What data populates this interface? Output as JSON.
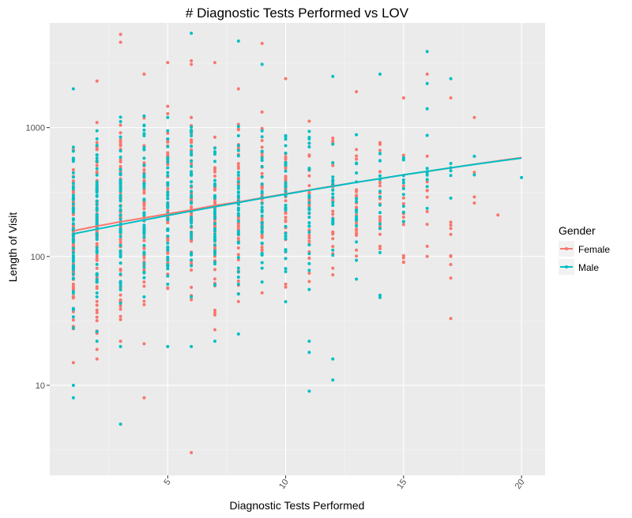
{
  "chart_data": {
    "type": "scatter",
    "title": "# Diagnostic Tests Performed vs LOV",
    "xlabel": "Diagnostic Tests Performed",
    "ylabel": "Length of Visit",
    "xlim": [
      0,
      21
    ],
    "ylim": [
      2,
      6500
    ],
    "y_scale": "log10",
    "x_ticks": [
      5,
      10,
      15,
      20
    ],
    "x_tick_labels": [
      "5",
      "10",
      "15",
      "20"
    ],
    "y_ticks": [
      10,
      100,
      1000
    ],
    "y_tick_labels": [
      "10",
      "100",
      "1000"
    ],
    "grid": true,
    "legend": {
      "title": "Gender",
      "position": "right",
      "entries": [
        "Female",
        "Male"
      ]
    },
    "series": [
      {
        "name": "Female",
        "color": "#f8766d",
        "trend": [
          [
            1,
            158
          ],
          [
            2,
            172
          ],
          [
            3,
            186
          ],
          [
            4,
            199
          ],
          [
            5,
            214
          ],
          [
            6,
            230
          ],
          [
            7,
            249
          ],
          [
            8,
            265
          ],
          [
            9,
            285
          ],
          [
            10,
            306
          ],
          [
            11,
            328
          ],
          [
            12,
            352
          ],
          [
            13,
            377
          ],
          [
            14,
            402
          ],
          [
            15,
            430
          ],
          [
            16,
            458
          ],
          [
            17,
            487
          ],
          [
            18,
            520
          ],
          [
            19,
            552
          ],
          [
            20,
            585
          ]
        ],
        "bands": [
          {
            "x": 1,
            "lo": 14,
            "hi": 1050,
            "n": 70
          },
          {
            "x": 2,
            "lo": 15,
            "hi": 1500,
            "n": 70
          },
          {
            "x": 3,
            "lo": 25,
            "hi": 1700,
            "n": 65
          },
          {
            "x": 4,
            "lo": 30,
            "hi": 1500,
            "n": 55
          },
          {
            "x": 5,
            "lo": 30,
            "hi": 1600,
            "n": 50
          },
          {
            "x": 6,
            "lo": 30,
            "hi": 1700,
            "n": 50
          },
          {
            "x": 7,
            "lo": 30,
            "hi": 1800,
            "n": 45
          },
          {
            "x": 8,
            "lo": 40,
            "hi": 1600,
            "n": 45
          },
          {
            "x": 9,
            "lo": 40,
            "hi": 1500,
            "n": 40
          },
          {
            "x": 10,
            "lo": 40,
            "hi": 1600,
            "n": 35
          },
          {
            "x": 11,
            "lo": 45,
            "hi": 1300,
            "n": 30
          },
          {
            "x": 12,
            "lo": 60,
            "hi": 1200,
            "n": 25
          },
          {
            "x": 13,
            "lo": 60,
            "hi": 1000,
            "n": 20
          },
          {
            "x": 14,
            "lo": 80,
            "hi": 1000,
            "n": 15
          },
          {
            "x": 15,
            "lo": 80,
            "hi": 900,
            "n": 12
          },
          {
            "x": 16,
            "lo": 150,
            "hi": 700,
            "n": 8
          },
          {
            "x": 17,
            "lo": 70,
            "hi": 650,
            "n": 6
          }
        ],
        "points": [
          [
            3,
            5300
          ],
          [
            3,
            4600
          ],
          [
            4,
            2600
          ],
          [
            5,
            3200
          ],
          [
            6,
            3300
          ],
          [
            6,
            3100
          ],
          [
            7,
            3200
          ],
          [
            8,
            2000
          ],
          [
            9,
            4500
          ],
          [
            10,
            2400
          ],
          [
            2,
            2300
          ],
          [
            13,
            1900
          ],
          [
            15,
            1700
          ],
          [
            16,
            2600
          ],
          [
            17,
            1700
          ],
          [
            18,
            1200
          ],
          [
            18,
            450
          ],
          [
            18,
            290
          ],
          [
            18,
            260
          ],
          [
            19,
            210
          ],
          [
            17,
            33
          ],
          [
            17,
            68
          ],
          [
            17,
            100
          ],
          [
            16,
            100
          ],
          [
            4,
            21
          ],
          [
            4,
            8
          ],
          [
            6,
            3
          ],
          [
            7,
            27
          ],
          [
            1,
            15
          ],
          [
            2,
            16
          ],
          [
            2,
            19
          ],
          [
            3,
            22
          ],
          [
            14,
            120
          ],
          [
            14,
            115
          ],
          [
            15,
            90
          ],
          [
            16,
            120
          ]
        ]
      },
      {
        "name": "Male",
        "color": "#00bfc4",
        "trend": [
          [
            1,
            150
          ],
          [
            2,
            163
          ],
          [
            3,
            177
          ],
          [
            4,
            192
          ],
          [
            5,
            208
          ],
          [
            6,
            225
          ],
          [
            7,
            243
          ],
          [
            8,
            262
          ],
          [
            9,
            283
          ],
          [
            10,
            304
          ],
          [
            11,
            327
          ],
          [
            12,
            350
          ],
          [
            13,
            376
          ],
          [
            14,
            402
          ],
          [
            15,
            430
          ],
          [
            16,
            458
          ],
          [
            17,
            488
          ],
          [
            18,
            518
          ],
          [
            19,
            549
          ],
          [
            20,
            580
          ]
        ],
        "bands": [
          {
            "x": 1,
            "lo": 20,
            "hi": 1000,
            "n": 60
          },
          {
            "x": 2,
            "lo": 25,
            "hi": 1400,
            "n": 55
          },
          {
            "x": 3,
            "lo": 35,
            "hi": 1600,
            "n": 50
          },
          {
            "x": 4,
            "lo": 40,
            "hi": 1500,
            "n": 45
          },
          {
            "x": 5,
            "lo": 40,
            "hi": 1500,
            "n": 45
          },
          {
            "x": 6,
            "lo": 40,
            "hi": 1500,
            "n": 40
          },
          {
            "x": 7,
            "lo": 40,
            "hi": 1500,
            "n": 40
          },
          {
            "x": 8,
            "lo": 40,
            "hi": 1500,
            "n": 35
          },
          {
            "x": 9,
            "lo": 40,
            "hi": 1300,
            "n": 35
          },
          {
            "x": 10,
            "lo": 40,
            "hi": 1300,
            "n": 30
          },
          {
            "x": 11,
            "lo": 50,
            "hi": 1200,
            "n": 25
          },
          {
            "x": 12,
            "lo": 60,
            "hi": 1100,
            "n": 22
          },
          {
            "x": 13,
            "lo": 60,
            "hi": 1000,
            "n": 18
          },
          {
            "x": 14,
            "lo": 90,
            "hi": 900,
            "n": 14
          },
          {
            "x": 15,
            "lo": 130,
            "hi": 900,
            "n": 10
          },
          {
            "x": 16,
            "lo": 200,
            "hi": 900,
            "n": 8
          },
          {
            "x": 17,
            "lo": 250,
            "hi": 700,
            "n": 5
          }
        ],
        "points": [
          [
            1,
            2000
          ],
          [
            1,
            10
          ],
          [
            1,
            8
          ],
          [
            3,
            5
          ],
          [
            6,
            5400
          ],
          [
            8,
            4700
          ],
          [
            9,
            3100
          ],
          [
            12,
            2500
          ],
          [
            14,
            2600
          ],
          [
            16,
            3900
          ],
          [
            17,
            2400
          ],
          [
            18,
            600
          ],
          [
            18,
            430
          ],
          [
            20,
            410
          ],
          [
            11,
            22
          ],
          [
            11,
            18
          ],
          [
            11,
            9
          ],
          [
            12,
            16
          ],
          [
            12,
            11
          ],
          [
            14,
            50
          ],
          [
            14,
            48
          ],
          [
            7,
            22
          ],
          [
            6,
            20
          ],
          [
            5,
            20
          ],
          [
            3,
            20
          ],
          [
            2,
            22
          ],
          [
            8,
            25
          ],
          [
            16,
            1400
          ],
          [
            16,
            2200
          ]
        ]
      }
    ]
  }
}
